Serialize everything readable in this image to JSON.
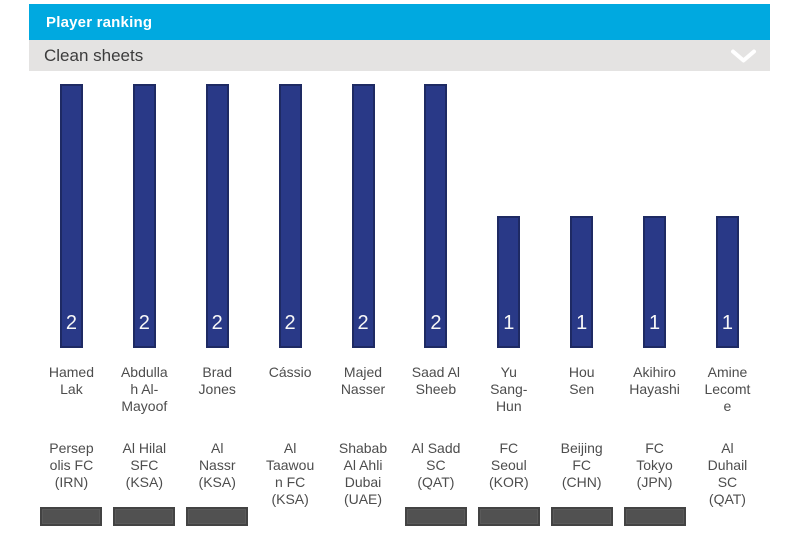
{
  "header": {
    "title": "Player ranking"
  },
  "filter": {
    "label": "Clean sheets",
    "chevron_icon": "chevron-down"
  },
  "colors": {
    "header_bg": "#00a9e0",
    "filter_bg": "#e4e3e2",
    "bar_fill": "#293987",
    "bar_border": "#1e2a63",
    "value_text": "#f7f7f7",
    "label_text": "#4d4d4d",
    "logo_placeholder": "#515151"
  },
  "chart_data": {
    "type": "bar",
    "title": "Player ranking",
    "metric": "Clean sheets",
    "ylim": [
      0,
      2
    ],
    "grid": false,
    "legend": "none",
    "categories": [
      "Hamed Lak",
      "Abdullah Al-Mayoof",
      "Brad Jones",
      "Cássio",
      "Majed Nasser",
      "Saad Al Sheeb",
      "Yu Sang-Hun",
      "Hou Sen",
      "Akihiro Hayashi",
      "Amine Lecomte"
    ],
    "values": [
      2,
      2,
      2,
      2,
      2,
      2,
      1,
      1,
      1,
      1
    ],
    "players": [
      {
        "name": "Hamed Lak",
        "club": "Persepolis FC (IRN)",
        "value": 2,
        "logo_visible": true
      },
      {
        "name": "Abdullah Al-Mayoof",
        "club": "Al Hilal SFC (KSA)",
        "value": 2,
        "logo_visible": true
      },
      {
        "name": "Brad Jones",
        "club": "Al Nassr (KSA)",
        "value": 2,
        "logo_visible": true
      },
      {
        "name": "Cássio",
        "club": "Al Taawoun FC (KSA)",
        "value": 2,
        "logo_visible": false
      },
      {
        "name": "Majed Nasser",
        "club": "Shabab Al Ahli Dubai (UAE)",
        "value": 2,
        "logo_visible": false
      },
      {
        "name": "Saad Al Sheeb",
        "club": "Al Sadd SC (QAT)",
        "value": 2,
        "logo_visible": true
      },
      {
        "name": "Yu Sang-Hun",
        "club": "FC Seoul (KOR)",
        "value": 1,
        "logo_visible": true
      },
      {
        "name": "Hou Sen",
        "club": "Beijing FC (CHN)",
        "value": 1,
        "logo_visible": true
      },
      {
        "name": "Akihiro Hayashi",
        "club": "FC Tokyo (JPN)",
        "value": 1,
        "logo_visible": true
      },
      {
        "name": "Amine Lecomte",
        "club": "Al Duhail SC (QAT)",
        "value": 1,
        "logo_visible": false
      }
    ]
  }
}
